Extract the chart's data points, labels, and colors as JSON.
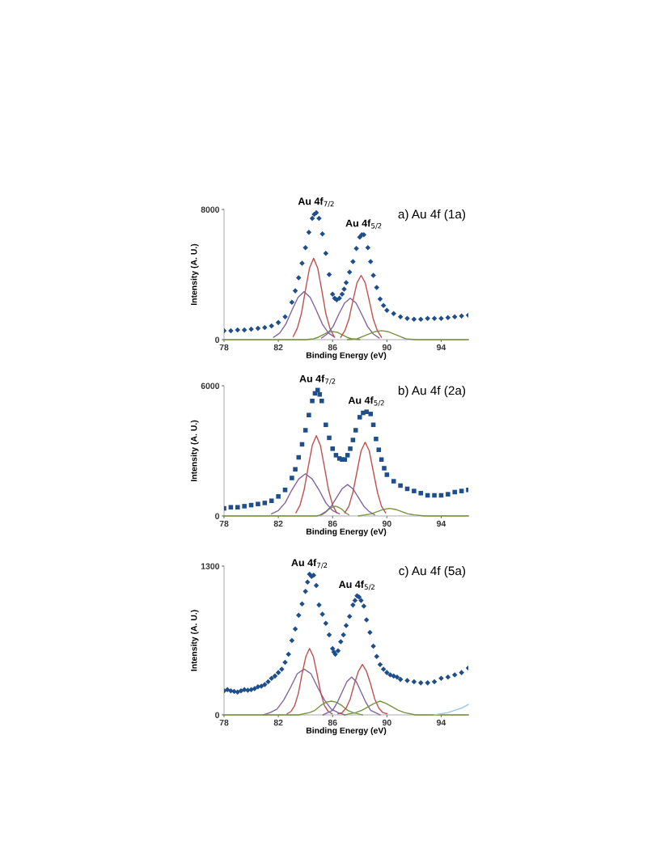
{
  "chart_data": [
    {
      "type": "line",
      "title": "a) Au 4f (1a)",
      "xlabel": "Binding Energy (eV)",
      "ylabel": "Intensity (A. U.)",
      "xlim": [
        78,
        96
      ],
      "xticks": [
        78,
        82,
        86,
        90,
        94
      ],
      "ylim": [
        0,
        8000
      ],
      "yticks": [
        0,
        8000
      ],
      "grid": false,
      "legend": false,
      "annotations": [
        {
          "text": "Au 4f$_{7/2}$",
          "x": 84.8,
          "y": 7800
        },
        {
          "text": "Au 4f$_{5/2}$",
          "x": 88.3,
          "y": 6450
        }
      ],
      "series": [
        {
          "color": "#8064a2",
          "x": [
            81.65,
            82.1,
            82.55,
            83.0,
            83.45,
            83.9,
            84.35,
            84.8,
            85.25,
            85.7,
            86.15
          ],
          "values": [
            150,
            400,
            950,
            1800,
            2600,
            2950,
            2600,
            1800,
            950,
            400,
            150
          ]
        },
        {
          "color": "#c0504d",
          "x": [
            83.1,
            83.4,
            83.7,
            84.0,
            84.3,
            84.6,
            84.9,
            85.2,
            85.5,
            85.8,
            86.1
          ],
          "values": [
            200,
            700,
            1600,
            3050,
            4400,
            5000,
            4400,
            3050,
            1600,
            700,
            200
          ]
        },
        {
          "color": "#77933c",
          "x": [
            78,
            84.0,
            84.6,
            84.95,
            85.3,
            85.65,
            86.0,
            86.35,
            86.7,
            87.05,
            87.4,
            88.0
          ],
          "values": [
            0,
            0,
            50,
            150,
            300,
            450,
            500,
            450,
            300,
            150,
            50,
            0
          ]
        },
        {
          "color": "#8064a2",
          "x": [
            85.18,
            85.6,
            86.03,
            86.45,
            86.88,
            87.3,
            87.73,
            88.15,
            88.58,
            89.0,
            89.43
          ],
          "values": [
            100,
            350,
            800,
            1550,
            2250,
            2550,
            2250,
            1550,
            800,
            350,
            100
          ]
        },
        {
          "color": "#c0504d",
          "x": [
            86.6,
            86.9,
            87.2,
            87.5,
            87.8,
            88.1,
            88.4,
            88.7,
            89.0,
            89.3,
            89.6
          ],
          "values": [
            150,
            550,
            1250,
            2400,
            3500,
            3950,
            3500,
            2400,
            1250,
            550,
            150
          ]
        },
        {
          "color": "#77933c",
          "x": [
            87.1,
            87.8,
            88.25,
            88.7,
            89.15,
            89.6,
            90.05,
            90.5,
            90.95,
            91.4,
            92.2,
            96
          ],
          "values": [
            0,
            50,
            200,
            350,
            500,
            550,
            500,
            350,
            200,
            50,
            0,
            0
          ]
        },
        {
          "type": "scatter",
          "color": "#1f4e8c",
          "marker": "diamond",
          "x": [
            78,
            78.5,
            79,
            79.5,
            80,
            80.5,
            81,
            81.5,
            82,
            82.5,
            83,
            83.25,
            83.5,
            83.75,
            84,
            84.25,
            84.5,
            84.65,
            84.8,
            85,
            85.25,
            85.5,
            85.75,
            86,
            86.15,
            86.3,
            86.5,
            86.7,
            86.85,
            87,
            87.25,
            87.5,
            87.75,
            88,
            88.15,
            88.3,
            88.6,
            88.8,
            89,
            89.25,
            89.5,
            89.75,
            90,
            90.5,
            91,
            91.5,
            92,
            92.5,
            93,
            93.5,
            94,
            94.5,
            95,
            95.5,
            96
          ],
          "values": [
            550,
            550,
            600,
            600,
            650,
            700,
            750,
            850,
            1050,
            1400,
            2300,
            3000,
            3800,
            4700,
            5650,
            6600,
            7450,
            7700,
            7800,
            7450,
            6500,
            5300,
            4000,
            2800,
            2550,
            2450,
            2550,
            2800,
            3100,
            3500,
            4150,
            4800,
            5600,
            6300,
            6450,
            6450,
            5650,
            4800,
            3950,
            3200,
            2500,
            2100,
            1800,
            1600,
            1400,
            1300,
            1250,
            1250,
            1300,
            1300,
            1300,
            1350,
            1400,
            1450,
            1500
          ]
        }
      ]
    },
    {
      "type": "line",
      "title": "b) Au 4f (2a)",
      "xlabel": "Binding Energy (eV)",
      "ylabel": "Intensity (A. U.)",
      "xlim": [
        78,
        96
      ],
      "xticks": [
        78,
        82,
        86,
        90,
        94
      ],
      "ylim": [
        0,
        6000
      ],
      "yticks": [
        0,
        6000
      ],
      "grid": false,
      "legend": false,
      "annotations": [
        {
          "text": "Au 4f$_{7/2}$",
          "x": 84.9,
          "y": 5800
        },
        {
          "text": "Au 4f$_{5/2}$",
          "x": 88.5,
          "y": 4800
        }
      ],
      "series": [
        {
          "color": "#8064a2",
          "x": [
            81.5,
            82.0,
            82.5,
            83.0,
            83.5,
            84.0,
            84.5,
            85.0,
            85.5,
            86.0,
            86.5
          ],
          "values": [
            100,
            250,
            600,
            1200,
            1700,
            1950,
            1700,
            1200,
            600,
            250,
            100
          ]
        },
        {
          "color": "#c0504d",
          "x": [
            83.3,
            83.6,
            83.9,
            84.2,
            84.5,
            84.8,
            85.1,
            85.4,
            85.7,
            86.0,
            86.3
          ],
          "values": [
            150,
            500,
            1200,
            2250,
            3250,
            3700,
            3250,
            2250,
            1200,
            500,
            150
          ]
        },
        {
          "color": "#77933c",
          "x": [
            78,
            84.8,
            85.2,
            85.45,
            85.7,
            85.95,
            86.2,
            86.45,
            86.7,
            86.95,
            87.2
          ],
          "values": [
            0,
            0,
            50,
            150,
            300,
            400,
            450,
            400,
            300,
            150,
            50
          ]
        },
        {
          "color": "#8064a2",
          "x": [
            85.1,
            85.5,
            85.9,
            86.3,
            86.7,
            87.1,
            87.5,
            87.9,
            88.3,
            88.7,
            89.1
          ],
          "values": [
            50,
            200,
            450,
            850,
            1250,
            1450,
            1250,
            850,
            450,
            200,
            50
          ]
        },
        {
          "color": "#c0504d",
          "x": [
            86.9,
            87.2,
            87.5,
            87.8,
            88.1,
            88.4,
            88.7,
            89.0,
            89.3,
            89.6,
            89.9
          ],
          "values": [
            150,
            450,
            1100,
            2050,
            3000,
            3400,
            3000,
            2050,
            1100,
            450,
            150
          ]
        },
        {
          "color": "#77933c",
          "x": [
            87.9,
            88.4,
            88.85,
            89.3,
            89.75,
            90.2,
            90.65,
            91.1,
            91.55,
            92.0,
            92.8,
            96
          ],
          "values": [
            0,
            50,
            100,
            200,
            300,
            350,
            300,
            200,
            100,
            50,
            0,
            0
          ]
        },
        {
          "type": "scatter",
          "color": "#1f4e8c",
          "marker": "square",
          "x": [
            78,
            78.5,
            79,
            79.5,
            80,
            80.5,
            81,
            81.5,
            82,
            82.5,
            83,
            83.25,
            83.5,
            83.75,
            84,
            84.25,
            84.5,
            84.7,
            84.9,
            85.05,
            85.2,
            85.5,
            85.75,
            86,
            86.25,
            86.5,
            86.7,
            86.9,
            87.1,
            87.3,
            87.5,
            87.7,
            88,
            88.25,
            88.5,
            88.8,
            89,
            89.2,
            89.4,
            89.6,
            89.8,
            90,
            90.5,
            91,
            91.5,
            92,
            92.5,
            93,
            93.5,
            94,
            94.5,
            95,
            95.5,
            96
          ],
          "values": [
            350,
            400,
            400,
            450,
            500,
            550,
            600,
            700,
            900,
            1200,
            1750,
            2150,
            2700,
            3300,
            3950,
            4650,
            5300,
            5650,
            5800,
            5600,
            5300,
            4200,
            3600,
            3100,
            2800,
            2650,
            2600,
            2600,
            2800,
            3100,
            3500,
            3950,
            4550,
            4750,
            4800,
            4700,
            4200,
            3550,
            3050,
            2600,
            2200,
            1900,
            1600,
            1400,
            1250,
            1150,
            1050,
            950,
            950,
            950,
            1000,
            1100,
            1150,
            1200
          ]
        }
      ]
    },
    {
      "type": "line",
      "title": "c) Au 4f (5a)",
      "xlabel": "Binding Energy (eV)",
      "ylabel": "Intensity (A. U.)",
      "xlim": [
        78,
        96
      ],
      "xticks": [
        78,
        82,
        86,
        90,
        94
      ],
      "ylim": [
        0,
        1300
      ],
      "yticks": [
        0,
        1300
      ],
      "grid": false,
      "legend": false,
      "annotations": [
        {
          "text": "Au 4f$_{7/2}$",
          "x": 84.3,
          "y": 1230
        },
        {
          "text": "Au 4f$_{5/2}$",
          "x": 87.8,
          "y": 1040
        }
      ],
      "series": [
        {
          "color": "#8064a2",
          "x": [
            80.9,
            81.4,
            81.9,
            82.4,
            82.9,
            83.4,
            83.9,
            84.4,
            84.9,
            85.4,
            85.9,
            86.4,
            86.9
          ],
          "values": [
            0,
            20,
            50,
            130,
            240,
            360,
            400,
            360,
            240,
            130,
            50,
            20,
            0
          ]
        },
        {
          "color": "#c0504d",
          "x": [
            82.65,
            82.93,
            83.2,
            83.48,
            83.75,
            84.03,
            84.3,
            84.58,
            84.85,
            85.13,
            85.4,
            85.68,
            85.95
          ],
          "values": [
            10,
            30,
            80,
            190,
            360,
            510,
            580,
            510,
            360,
            190,
            80,
            30,
            10
          ]
        },
        {
          "color": "#77933c",
          "x": [
            78,
            83.5,
            84.3,
            84.7,
            85.1,
            85.5,
            85.9,
            86.3,
            86.7,
            87.1,
            87.5,
            88.2
          ],
          "values": [
            0,
            0,
            20,
            40,
            80,
            110,
            120,
            110,
            80,
            40,
            20,
            0
          ]
        },
        {
          "color": "#8064a2",
          "x": [
            85.3,
            85.65,
            86.0,
            86.35,
            86.7,
            87.05,
            87.4,
            87.75,
            88.1,
            88.45,
            88.8,
            89.15,
            89.5
          ],
          "values": [
            0,
            20,
            40,
            110,
            200,
            290,
            330,
            290,
            200,
            110,
            40,
            20,
            0
          ]
        },
        {
          "color": "#c0504d",
          "x": [
            86.4,
            86.7,
            87.0,
            87.3,
            87.6,
            87.9,
            88.2,
            88.5,
            88.8,
            89.1,
            89.4,
            89.7,
            90.0
          ],
          "values": [
            10,
            20,
            60,
            140,
            270,
            380,
            440,
            380,
            270,
            140,
            60,
            20,
            10
          ]
        },
        {
          "color": "#77933c",
          "x": [
            86.9,
            87.7,
            88.15,
            88.6,
            89.05,
            89.5,
            89.95,
            90.4,
            90.85,
            91.3,
            92.1,
            96
          ],
          "values": [
            0,
            20,
            40,
            70,
            100,
            120,
            100,
            70,
            40,
            20,
            0,
            0
          ]
        },
        {
          "color": "#9dc3e6",
          "x": [
            93.5,
            94.5,
            95,
            95.5,
            96
          ],
          "values": [
            0,
            20,
            40,
            60,
            90
          ]
        },
        {
          "type": "scatter",
          "color": "#1f4e8c",
          "marker": "diamond",
          "x": [
            78,
            78.25,
            78.5,
            78.75,
            79,
            79.25,
            79.5,
            79.75,
            80,
            80.25,
            80.5,
            80.75,
            81,
            81.25,
            81.5,
            81.75,
            82,
            82.25,
            82.5,
            82.75,
            83,
            83.25,
            83.5,
            83.75,
            84,
            84.15,
            84.3,
            84.45,
            84.6,
            84.8,
            85,
            85.25,
            85.5,
            85.75,
            86,
            86.1,
            86.2,
            86.4,
            86.6,
            86.8,
            87,
            87.25,
            87.5,
            87.65,
            87.8,
            87.95,
            88.1,
            88.3,
            88.5,
            88.75,
            89,
            89.25,
            89.5,
            89.75,
            90,
            90.25,
            90.5,
            90.75,
            91,
            91.5,
            92,
            92.5,
            93,
            93.5,
            94,
            94.5,
            95,
            95.5,
            96
          ],
          "values": [
            210,
            220,
            210,
            205,
            200,
            210,
            220,
            215,
            220,
            230,
            245,
            250,
            265,
            290,
            320,
            340,
            370,
            400,
            460,
            530,
            650,
            750,
            870,
            970,
            1080,
            1160,
            1230,
            1210,
            1220,
            1130,
            960,
            880,
            800,
            700,
            580,
            550,
            530,
            560,
            640,
            700,
            780,
            860,
            960,
            1000,
            1040,
            1030,
            1000,
            950,
            830,
            720,
            600,
            510,
            440,
            400,
            370,
            350,
            340,
            330,
            310,
            300,
            290,
            280,
            280,
            290,
            320,
            330,
            350,
            370,
            410
          ]
        }
      ]
    }
  ]
}
